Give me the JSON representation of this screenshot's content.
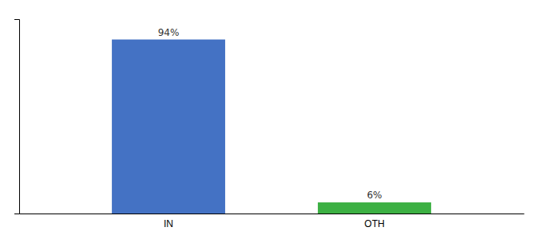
{
  "chart_data": {
    "type": "bar",
    "categories": [
      "IN",
      "OTH"
    ],
    "values": [
      94,
      6
    ],
    "value_labels": [
      "94%",
      "6%"
    ],
    "colors": [
      "#4472c4",
      "#3cb043"
    ],
    "ylim": [
      0,
      105
    ],
    "grid": false,
    "data_labels": true,
    "tick_labels": "x"
  }
}
